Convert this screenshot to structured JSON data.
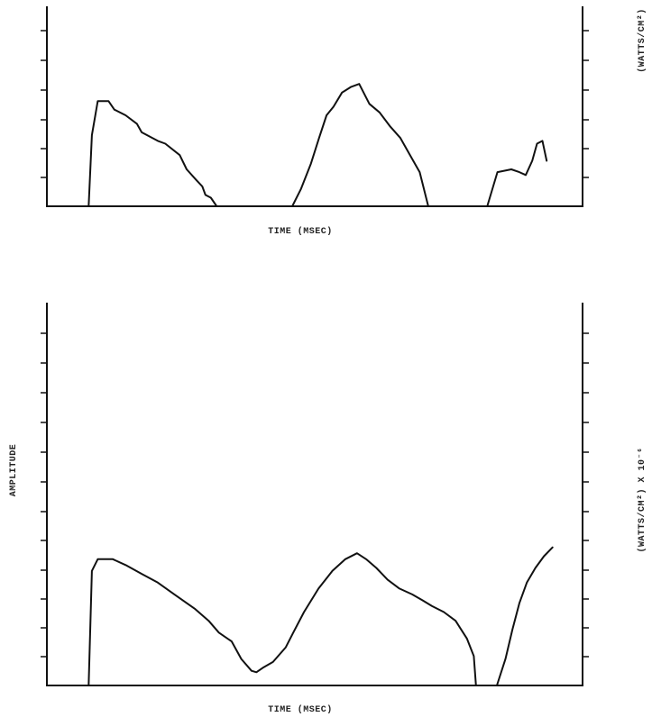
{
  "chart_data": [
    {
      "type": "line",
      "title": "",
      "xlabel": "TIME (MSEC)",
      "ylabel": "",
      "ylabel_right": "(WATTS/CM²)",
      "grid": false,
      "x_tick_labels": false,
      "y_tick_labels": false,
      "xlim": [
        0,
        100
      ],
      "ylim": [
        0,
        7
      ],
      "series": [
        {
          "x": [
            7.8,
            8.4,
            9.5,
            11.5,
            12.6,
            14.7,
            16.8,
            17.7,
            20.7,
            22.1,
            24.8,
            26.1,
            28.0,
            29.0,
            29.6,
            30.6,
            31.7
          ],
          "y": [
            0.0,
            2.5,
            3.7,
            3.7,
            3.4,
            3.2,
            2.9,
            2.6,
            2.3,
            2.2,
            1.8,
            1.3,
            0.9,
            0.7,
            0.4,
            0.3,
            0.0
          ]
        },
        {
          "x": [
            45.8,
            47.4,
            49.3,
            50.8,
            52.2,
            53.5,
            55.1,
            56.8,
            58.3,
            60.2,
            62.1,
            64.1,
            66.0,
            67.8,
            69.6,
            71.2
          ],
          "y": [
            0.0,
            0.6,
            1.5,
            2.4,
            3.2,
            3.5,
            4.0,
            4.2,
            4.3,
            3.6,
            3.3,
            2.8,
            2.4,
            1.8,
            1.2,
            0.0
          ]
        },
        {
          "x": [
            82.2,
            84.1,
            86.7,
            88.2,
            89.4,
            90.6,
            91.5,
            92.5,
            93.3
          ],
          "y": [
            0.0,
            1.2,
            1.3,
            1.2,
            1.1,
            1.6,
            2.2,
            2.3,
            1.6
          ]
        }
      ]
    },
    {
      "type": "line",
      "title": "",
      "xlabel": "TIME (MSEC)",
      "ylabel": "AMPLITUDE",
      "ylabel_right": "(WATTS/CM²) X 10⁻⁶",
      "grid": false,
      "x_tick_labels": false,
      "y_tick_labels": false,
      "xlim": [
        0,
        100
      ],
      "ylim": [
        0,
        13
      ],
      "series": [
        {
          "x": [
            7.8,
            8.4,
            9.5,
            12.3,
            14.7,
            17.7,
            20.7,
            23.8,
            27.7,
            30.2,
            32.1,
            34.5,
            36.3,
            38.2,
            39.1,
            40.3,
            42.2,
            44.6,
            46.0,
            48.0,
            50.7,
            53.3,
            55.7,
            57.9,
            59.6,
            61.5,
            63.6,
            65.8,
            68.2,
            70.1,
            71.9,
            74.1,
            76.3,
            78.4,
            79.7,
            80.1
          ],
          "y": [
            0.0,
            3.9,
            4.3,
            4.3,
            4.1,
            3.8,
            3.5,
            3.1,
            2.6,
            2.2,
            1.8,
            1.5,
            0.9,
            0.5,
            0.45,
            0.6,
            0.8,
            1.3,
            1.8,
            2.5,
            3.3,
            3.9,
            4.3,
            4.5,
            4.3,
            4.0,
            3.6,
            3.3,
            3.1,
            2.9,
            2.7,
            2.5,
            2.2,
            1.6,
            1.0,
            0.0
          ]
        },
        {
          "x": [
            84.0,
            85.6,
            86.9,
            88.2,
            89.6,
            91.2,
            92.8,
            94.4
          ],
          "y": [
            0.0,
            0.9,
            1.9,
            2.8,
            3.5,
            4.0,
            4.4,
            4.7
          ]
        }
      ]
    }
  ]
}
